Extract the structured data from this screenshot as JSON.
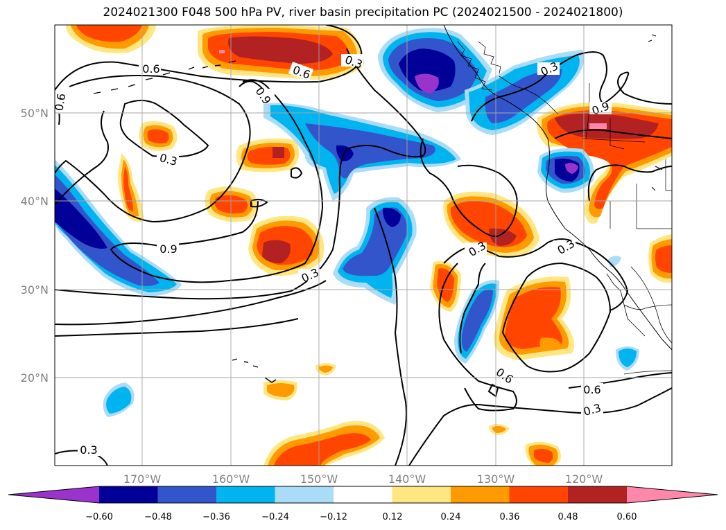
{
  "title": "2024021300 F048 500 hPa PV, river basin precipitation PC (2024021500 - 2024021800)",
  "map": {
    "lon_labels": [
      "170°W",
      "160°W",
      "150°W",
      "140°W",
      "130°W",
      "120°W"
    ],
    "lat_labels": [
      "50°N",
      "40°N",
      "30°N",
      "20°N"
    ],
    "contour_labels": [
      "0.6",
      "0.6",
      "0.6",
      "0.3",
      "0.9",
      "0.3",
      "0.9",
      "0.3",
      "0.3",
      "0.3",
      "0.3",
      "0.6",
      "0.6",
      "0.3",
      "0.9",
      "0.3"
    ]
  },
  "colorbar": {
    "ticks": [
      "−0.60",
      "−0.48",
      "−0.36",
      "−0.24",
      "−0.12",
      "0.12",
      "0.24",
      "0.36",
      "0.48",
      "0.60"
    ],
    "colors": [
      "#9933cc",
      "#000099",
      "#3355cc",
      "#00b4f0",
      "#aadcf8",
      "#ffffff",
      "#ffe680",
      "#ff9a00",
      "#ff4500",
      "#b22222",
      "#ff88aa"
    ]
  }
}
